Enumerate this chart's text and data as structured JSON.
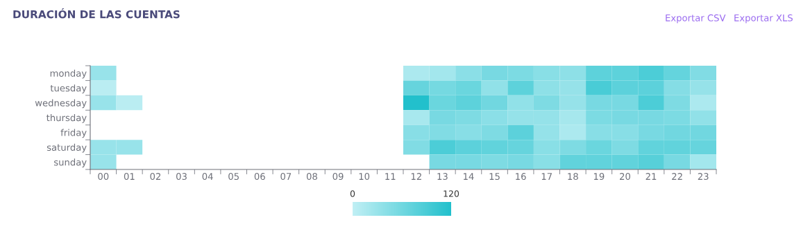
{
  "chart_data": {
    "type": "heatmap",
    "title": "DURACIÓN DE LAS CUENTAS",
    "annotations": [
      "Exportar CSV",
      "Exportar XLS"
    ],
    "categories": [
      "00",
      "01",
      "02",
      "03",
      "04",
      "05",
      "06",
      "07",
      "08",
      "09",
      "10",
      "11",
      "12",
      "13",
      "14",
      "15",
      "16",
      "17",
      "18",
      "19",
      "20",
      "21",
      "22",
      "23"
    ],
    "y_categories": [
      "monday",
      "tuesday",
      "wednesday",
      "thursday",
      "friday",
      "saturday",
      "sunday"
    ],
    "cells": [
      [
        30,
        null,
        null,
        null,
        null,
        null,
        null,
        null,
        null,
        null,
        null,
        null,
        15,
        22,
        40,
        55,
        52,
        42,
        38,
        75,
        75,
        88,
        70,
        48
      ],
      [
        5,
        null,
        null,
        null,
        null,
        null,
        null,
        null,
        null,
        null,
        null,
        null,
        68,
        57,
        65,
        36,
        75,
        38,
        32,
        90,
        76,
        76,
        45,
        32
      ],
      [
        30,
        5,
        null,
        null,
        null,
        null,
        null,
        null,
        null,
        null,
        null,
        null,
        120,
        65,
        75,
        60,
        36,
        50,
        32,
        55,
        55,
        88,
        50,
        15
      ],
      [
        null,
        null,
        null,
        null,
        null,
        null,
        null,
        null,
        null,
        null,
        null,
        null,
        18,
        55,
        50,
        40,
        33,
        33,
        20,
        52,
        55,
        55,
        52,
        36
      ],
      [
        null,
        null,
        null,
        null,
        null,
        null,
        null,
        null,
        null,
        null,
        null,
        null,
        43,
        48,
        43,
        50,
        76,
        33,
        15,
        43,
        43,
        55,
        60,
        60
      ],
      [
        30,
        30,
        null,
        null,
        null,
        null,
        null,
        null,
        null,
        null,
        null,
        null,
        48,
        88,
        76,
        72,
        68,
        42,
        50,
        65,
        50,
        72,
        72,
        68
      ],
      [
        30,
        null,
        null,
        null,
        null,
        null,
        null,
        null,
        null,
        null,
        null,
        null,
        null,
        55,
        55,
        50,
        55,
        42,
        72,
        72,
        72,
        80,
        55,
        22
      ]
    ],
    "colors": [
      "#c0eff4",
      "#22c0cc"
    ],
    "clim": [
      0,
      120
    ],
    "cticks": [
      0,
      120
    ]
  }
}
